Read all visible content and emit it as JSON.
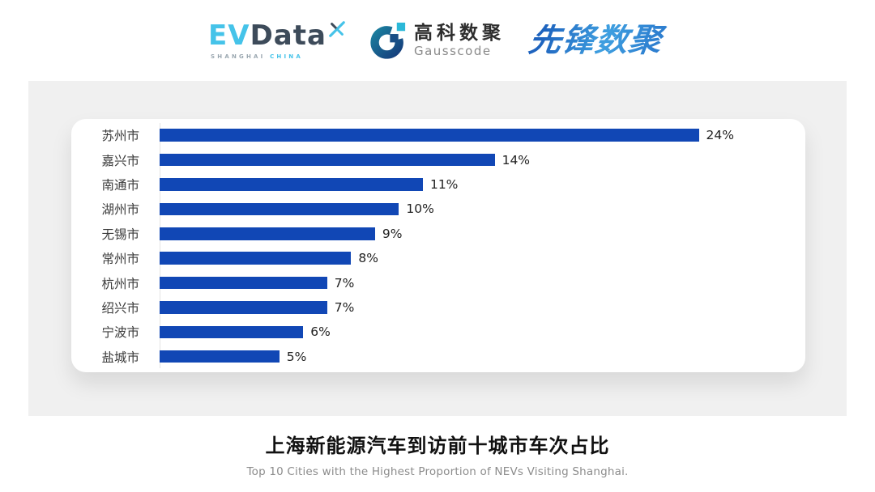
{
  "header": {
    "evdata": {
      "ev": "EV",
      "data": "Data",
      "sub_left": "SHANGHAI",
      "sub_right": "CHINA"
    },
    "gausscode": {
      "cn": "高科数聚",
      "en": "Gausscode"
    },
    "pioneer": {
      "text": "先锋数聚"
    }
  },
  "chart_data": {
    "type": "bar",
    "orientation": "horizontal",
    "title": "上海新能源汽车到访前十城市车次占比",
    "subtitle": "Top 10 Cities with the Highest Proportion of  NEVs Visiting Shanghai.",
    "categories": [
      "苏州市",
      "嘉兴市",
      "南通市",
      "湖州市",
      "无锡市",
      "常州市",
      "杭州市",
      "绍兴市",
      "宁波市",
      "盐城市"
    ],
    "values": [
      24,
      14,
      11,
      10,
      9,
      8,
      7,
      7,
      6,
      5
    ],
    "value_suffix": "%",
    "xlim": [
      0,
      24
    ],
    "bar_color": "#1147B5",
    "axis_line_color": "#E3E3E3",
    "legend": "none",
    "grid": "off"
  }
}
